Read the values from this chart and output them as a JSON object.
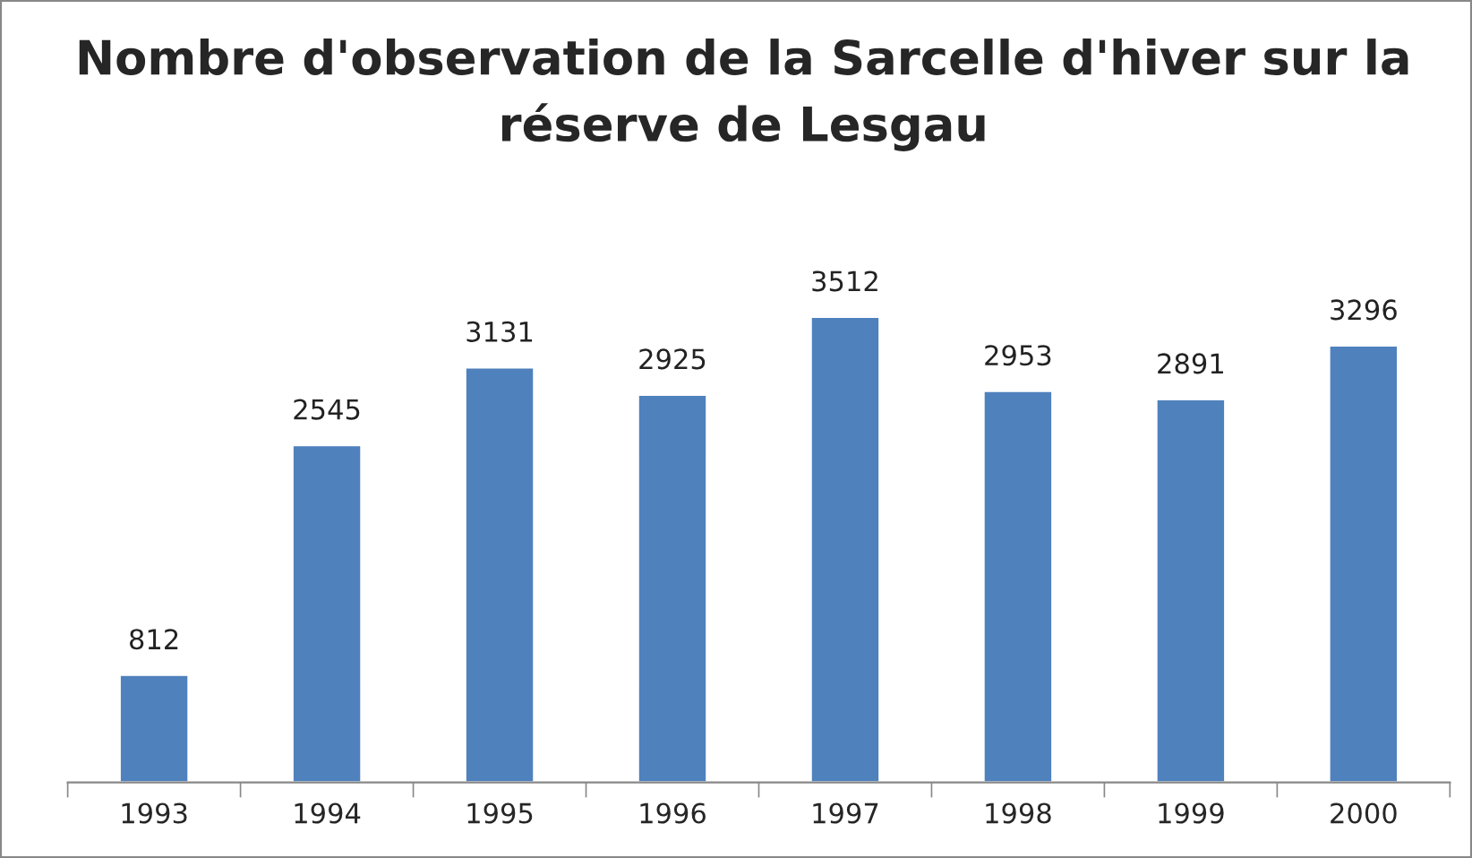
{
  "chart_data": {
    "type": "bar",
    "title": "Nombre d'observation de la Sarcelle d'hiver sur la réserve de Lesgau",
    "categories": [
      "1993",
      "1994",
      "1995",
      "1996",
      "1997",
      "1998",
      "1999",
      "2000"
    ],
    "values": [
      812,
      2545,
      3131,
      2925,
      3512,
      2953,
      2891,
      3296
    ],
    "color": "#4f81bd",
    "data_labels": true
  }
}
